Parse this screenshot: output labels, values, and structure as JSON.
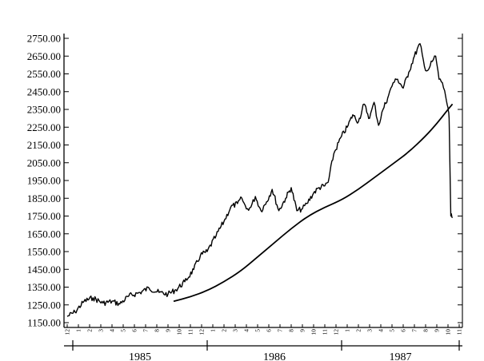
{
  "chart_data": {
    "type": "line",
    "title": "",
    "xlabel": "",
    "ylabel": "",
    "ylim": [
      1150,
      2800
    ],
    "y_ticks": [
      "1150.00",
      "1250.00",
      "1350.00",
      "1450.00",
      "1550.00",
      "1650.00",
      "1750.00",
      "1850.00",
      "1950.00",
      "2050.00",
      "2150.00",
      "2250.00",
      "2350.00",
      "2450.00",
      "2550.00",
      "2650.00",
      "2750.00"
    ],
    "x_unit": "months since December 1984",
    "xlim": [
      0,
      35
    ],
    "month_ticks": [
      "12",
      "1",
      "2",
      "3",
      "4",
      "5",
      "6",
      "7",
      "8",
      "9",
      "10",
      "11",
      "12",
      "1",
      "2",
      "3",
      "4",
      "5",
      "6",
      "7",
      "8",
      "9",
      "10",
      "11",
      "12",
      "1",
      "2",
      "3",
      "4",
      "5",
      "6",
      "7",
      "8",
      "9",
      "10",
      "11"
    ],
    "years": [
      {
        "label": "1985",
        "start": 0.5,
        "end": 12.5
      },
      {
        "label": "1986",
        "start": 12.5,
        "end": 24.5
      },
      {
        "label": "1987",
        "start": 24.5,
        "end": 35
      }
    ],
    "grid": false,
    "series": [
      {
        "name": "",
        "style": "jagged",
        "x": [
          0,
          0.7,
          1.5,
          2.3,
          3.2,
          4.0,
          4.7,
          5.5,
          6.5,
          7.3,
          8.2,
          9.0,
          9.7,
          10.5,
          11.3,
          11.9,
          12.5,
          13.3,
          14.0,
          14.6,
          15.2,
          15.6,
          16.0,
          16.4,
          16.8,
          17.3,
          17.8,
          18.3,
          18.9,
          19.5,
          20.0,
          20.5,
          21.0,
          21.4,
          22.0,
          22.5,
          23.0,
          23.3,
          23.8,
          24.5,
          25.0,
          25.5,
          26.0,
          26.5,
          27.0,
          27.4,
          27.8,
          28.2,
          28.7,
          29.1,
          29.5,
          30.0,
          30.5,
          31.0,
          31.5,
          31.9,
          32.2,
          32.6,
          32.9,
          33.2,
          33.5,
          33.8,
          34.0,
          34.1,
          34.25,
          34.4
        ],
        "y": [
          1185,
          1210,
          1270,
          1290,
          1260,
          1270,
          1255,
          1300,
          1320,
          1345,
          1320,
          1310,
          1335,
          1380,
          1450,
          1530,
          1550,
          1640,
          1720,
          1800,
          1820,
          1850,
          1790,
          1800,
          1860,
          1780,
          1830,
          1900,
          1780,
          1850,
          1910,
          1780,
          1790,
          1820,
          1880,
          1910,
          1920,
          1940,
          2100,
          2200,
          2250,
          2320,
          2280,
          2380,
          2300,
          2390,
          2260,
          2350,
          2430,
          2500,
          2520,
          2470,
          2560,
          2650,
          2720,
          2590,
          2570,
          2620,
          2650,
          2520,
          2500,
          2420,
          2360,
          2300,
          1750,
          1740
        ]
      },
      {
        "name": "",
        "style": "smooth",
        "x": [
          9.5,
          11,
          12.5,
          14,
          15.5,
          17,
          18.5,
          20,
          21.5,
          23,
          24.5,
          26,
          27.5,
          29,
          30.5,
          32,
          33,
          34,
          34.4
        ],
        "y": [
          1270,
          1295,
          1330,
          1380,
          1440,
          1520,
          1600,
          1680,
          1750,
          1800,
          1840,
          1900,
          1970,
          2040,
          2110,
          2200,
          2270,
          2350,
          2380
        ]
      }
    ]
  }
}
